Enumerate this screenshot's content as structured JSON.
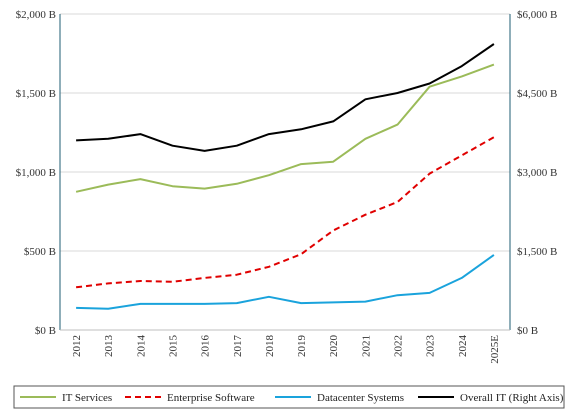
{
  "chart_data": {
    "type": "line",
    "categories": [
      "2012",
      "2013",
      "2014",
      "2015",
      "2016",
      "2017",
      "2018",
      "2019",
      "2020",
      "2021",
      "2022",
      "2023",
      "2024",
      "2025E"
    ],
    "left_axis": {
      "ticks": [
        0,
        500,
        1000,
        1500,
        2000
      ],
      "tick_labels": [
        "$0 B",
        "$500 B",
        "$1,000 B",
        "$1,500 B",
        "$2,000 B"
      ],
      "ylim": [
        0,
        2000
      ]
    },
    "right_axis": {
      "ticks": [
        0,
        1500,
        3000,
        4500,
        6000
      ],
      "tick_labels": [
        "$0 B",
        "$1,500 B",
        "$3,000 B",
        "$4,500 B",
        "$6,000 B"
      ],
      "ylim": [
        0,
        6000
      ]
    },
    "grid": true,
    "legend_position": "bottom",
    "series": [
      {
        "name": "IT Services",
        "axis": "left",
        "color": "#9bbb59",
        "dash": "solid",
        "values": [
          875,
          920,
          955,
          910,
          895,
          925,
          980,
          1050,
          1065,
          1210,
          1300,
          1540,
          1605,
          1680
        ]
      },
      {
        "name": "Enterprise Software",
        "axis": "left",
        "color": "#e00000",
        "dash": "dashed",
        "values": [
          270,
          295,
          310,
          305,
          330,
          350,
          400,
          480,
          630,
          730,
          810,
          990,
          1105,
          1220
        ]
      },
      {
        "name": "Datacenter Systems",
        "axis": "left",
        "color": "#1aa3dc",
        "dash": "solid",
        "values": [
          140,
          135,
          165,
          165,
          165,
          170,
          210,
          170,
          175,
          180,
          220,
          235,
          330,
          475
        ]
      },
      {
        "name": "Overall IT (Right Axis)",
        "axis": "right",
        "color": "#000000",
        "dash": "solid",
        "values": [
          3600,
          3630,
          3720,
          3500,
          3400,
          3500,
          3720,
          3810,
          3960,
          4380,
          4500,
          4680,
          5010,
          5430
        ]
      }
    ]
  }
}
